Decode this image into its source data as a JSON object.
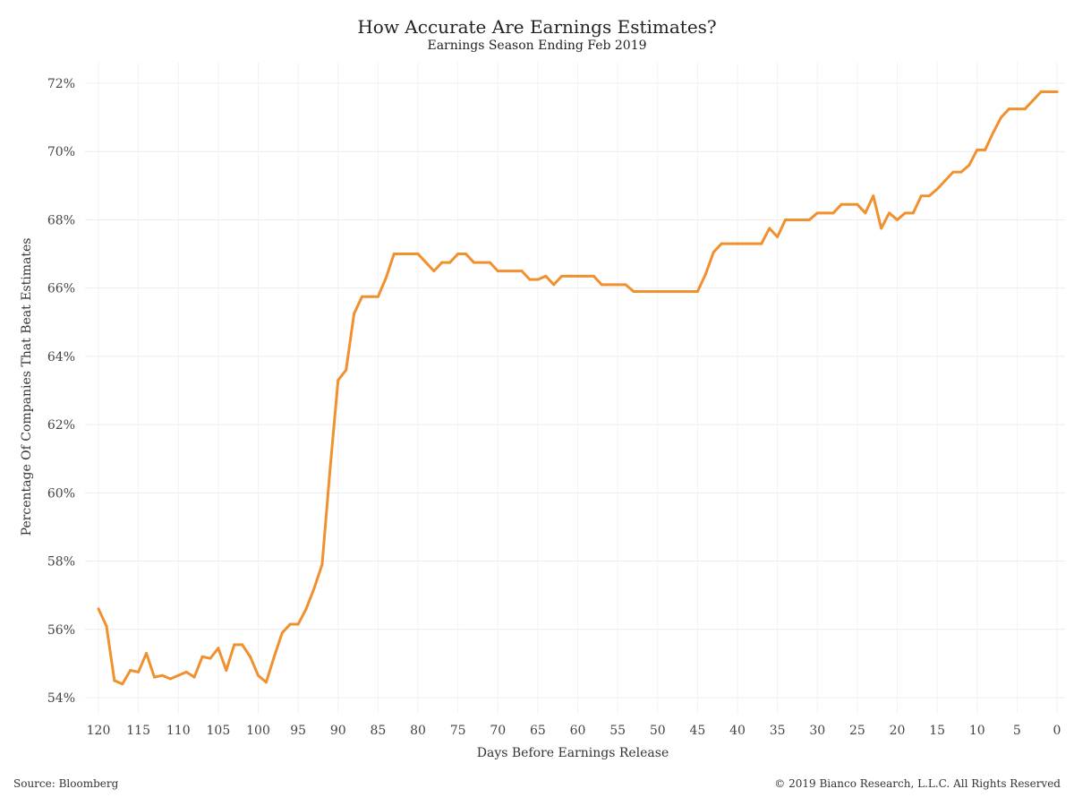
{
  "title": "How Accurate Are Earnings Estimates?",
  "subtitle": "Earnings Season Ending Feb 2019",
  "footer": {
    "source": "Source: Bloomberg",
    "copyright": "© 2019 Bianco Research, L.L.C. All Rights Reserved"
  },
  "chart_data": {
    "type": "line",
    "title": "How Accurate Are Earnings Estimates?",
    "subtitle": "Earnings Season Ending Feb 2019",
    "xlabel": "Days Before Earnings Release",
    "ylabel": "Percentage Of Companies That Beat Estimates",
    "x_reversed": true,
    "xlim": [
      120,
      0
    ],
    "ylim": [
      54,
      72
    ],
    "x_ticks": [
      120,
      115,
      110,
      105,
      100,
      95,
      90,
      85,
      80,
      75,
      70,
      65,
      60,
      55,
      50,
      45,
      40,
      35,
      30,
      25,
      20,
      15,
      10,
      5,
      0
    ],
    "y_ticks": [
      54,
      56,
      58,
      60,
      62,
      64,
      66,
      68,
      70,
      72
    ],
    "y_tick_format": "percent",
    "grid": true,
    "line_color": "#F0902E",
    "series": [
      {
        "x": [
          120,
          119,
          118,
          117,
          116,
          115,
          114,
          113,
          112,
          111,
          110,
          109,
          108,
          107,
          106,
          105,
          104,
          103,
          102,
          101,
          100,
          99,
          98,
          97,
          96,
          95,
          94,
          93,
          92,
          91,
          90,
          89,
          88,
          87,
          86,
          85,
          84,
          83,
          82,
          81,
          80,
          79,
          78,
          77,
          76,
          75,
          74,
          73,
          72,
          71,
          70,
          69,
          68,
          67,
          66,
          65,
          64,
          63,
          62,
          61,
          60,
          59,
          58,
          57,
          56,
          55,
          54,
          53,
          52,
          51,
          50,
          49,
          48,
          47,
          46,
          45,
          44,
          43,
          42,
          41,
          40,
          39,
          38,
          37,
          36,
          35,
          34,
          33,
          32,
          31,
          30,
          29,
          28,
          27,
          26,
          25,
          24,
          23,
          22,
          21,
          20,
          19,
          18,
          17,
          16,
          15,
          14,
          13,
          12,
          11,
          10,
          9,
          8,
          7,
          6,
          5,
          4,
          3,
          2,
          1,
          0
        ],
        "values": [
          56.6,
          56.1,
          54.5,
          54.4,
          54.8,
          54.75,
          55.3,
          54.6,
          54.65,
          54.55,
          54.65,
          54.75,
          54.6,
          55.2,
          55.15,
          55.45,
          54.8,
          55.55,
          55.55,
          55.2,
          54.65,
          54.45,
          55.2,
          55.9,
          56.15,
          56.15,
          56.6,
          57.2,
          57.9,
          60.7,
          63.3,
          63.6,
          65.25,
          65.75,
          65.75,
          65.75,
          66.3,
          67.0,
          67.0,
          67.0,
          67.0,
          66.75,
          66.5,
          66.75,
          66.75,
          67.0,
          67.0,
          66.75,
          66.75,
          66.75,
          66.5,
          66.5,
          66.5,
          66.5,
          66.25,
          66.25,
          66.35,
          66.1,
          66.35,
          66.35,
          66.35,
          66.35,
          66.35,
          66.1,
          66.1,
          66.1,
          66.1,
          65.9,
          65.9,
          65.9,
          65.9,
          65.9,
          65.9,
          65.9,
          65.9,
          65.9,
          66.4,
          67.05,
          67.3,
          67.3,
          67.3,
          67.3,
          67.3,
          67.3,
          67.75,
          67.5,
          68.0,
          68.0,
          68.0,
          68.0,
          68.2,
          68.2,
          68.2,
          68.45,
          68.45,
          68.45,
          68.2,
          68.7,
          67.75,
          68.2,
          68.0,
          68.2,
          68.2,
          68.7,
          68.7,
          68.9,
          69.15,
          69.4,
          69.4,
          69.6,
          70.05,
          70.05,
          70.55,
          71.0,
          71.25,
          71.25,
          71.25,
          71.5,
          71.75,
          71.75,
          71.75
        ]
      }
    ]
  }
}
